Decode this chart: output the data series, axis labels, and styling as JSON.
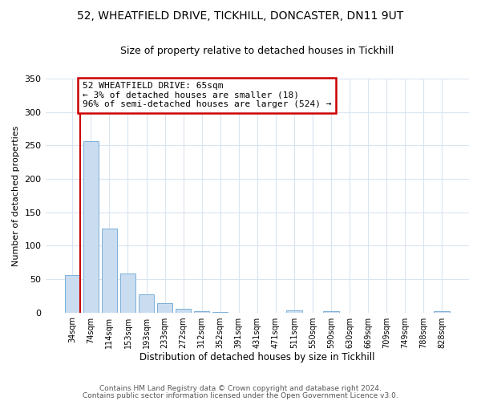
{
  "title_line1": "52, WHEATFIELD DRIVE, TICKHILL, DONCASTER, DN11 9UT",
  "title_line2": "Size of property relative to detached houses in Tickhill",
  "xlabel": "Distribution of detached houses by size in Tickhill",
  "ylabel": "Number of detached properties",
  "bar_labels": [
    "34sqm",
    "74sqm",
    "114sqm",
    "153sqm",
    "193sqm",
    "233sqm",
    "272sqm",
    "312sqm",
    "352sqm",
    "391sqm",
    "431sqm",
    "471sqm",
    "511sqm",
    "550sqm",
    "590sqm",
    "630sqm",
    "669sqm",
    "709sqm",
    "749sqm",
    "788sqm",
    "828sqm"
  ],
  "bar_values": [
    56,
    257,
    126,
    58,
    27,
    14,
    5,
    2,
    1,
    0,
    0,
    0,
    3,
    0,
    2,
    0,
    0,
    0,
    0,
    0,
    2
  ],
  "bar_color": "#c9dcf0",
  "bar_edge_color": "#7ab0d8",
  "annotation_title": "52 WHEATFIELD DRIVE: 65sqm",
  "annotation_line1": "← 3% of detached houses are smaller (18)",
  "annotation_line2": "96% of semi-detached houses are larger (524) →",
  "annotation_box_color": "#ffffff",
  "annotation_box_edge": "#cc0000",
  "vline_color": "#cc0000",
  "ylim": [
    0,
    350
  ],
  "yticks": [
    0,
    50,
    100,
    150,
    200,
    250,
    300,
    350
  ],
  "grid_color": "#d8e4f0",
  "footnote_line1": "Contains HM Land Registry data © Crown copyright and database right 2024.",
  "footnote_line2": "Contains public sector information licensed under the Open Government Licence v3.0."
}
